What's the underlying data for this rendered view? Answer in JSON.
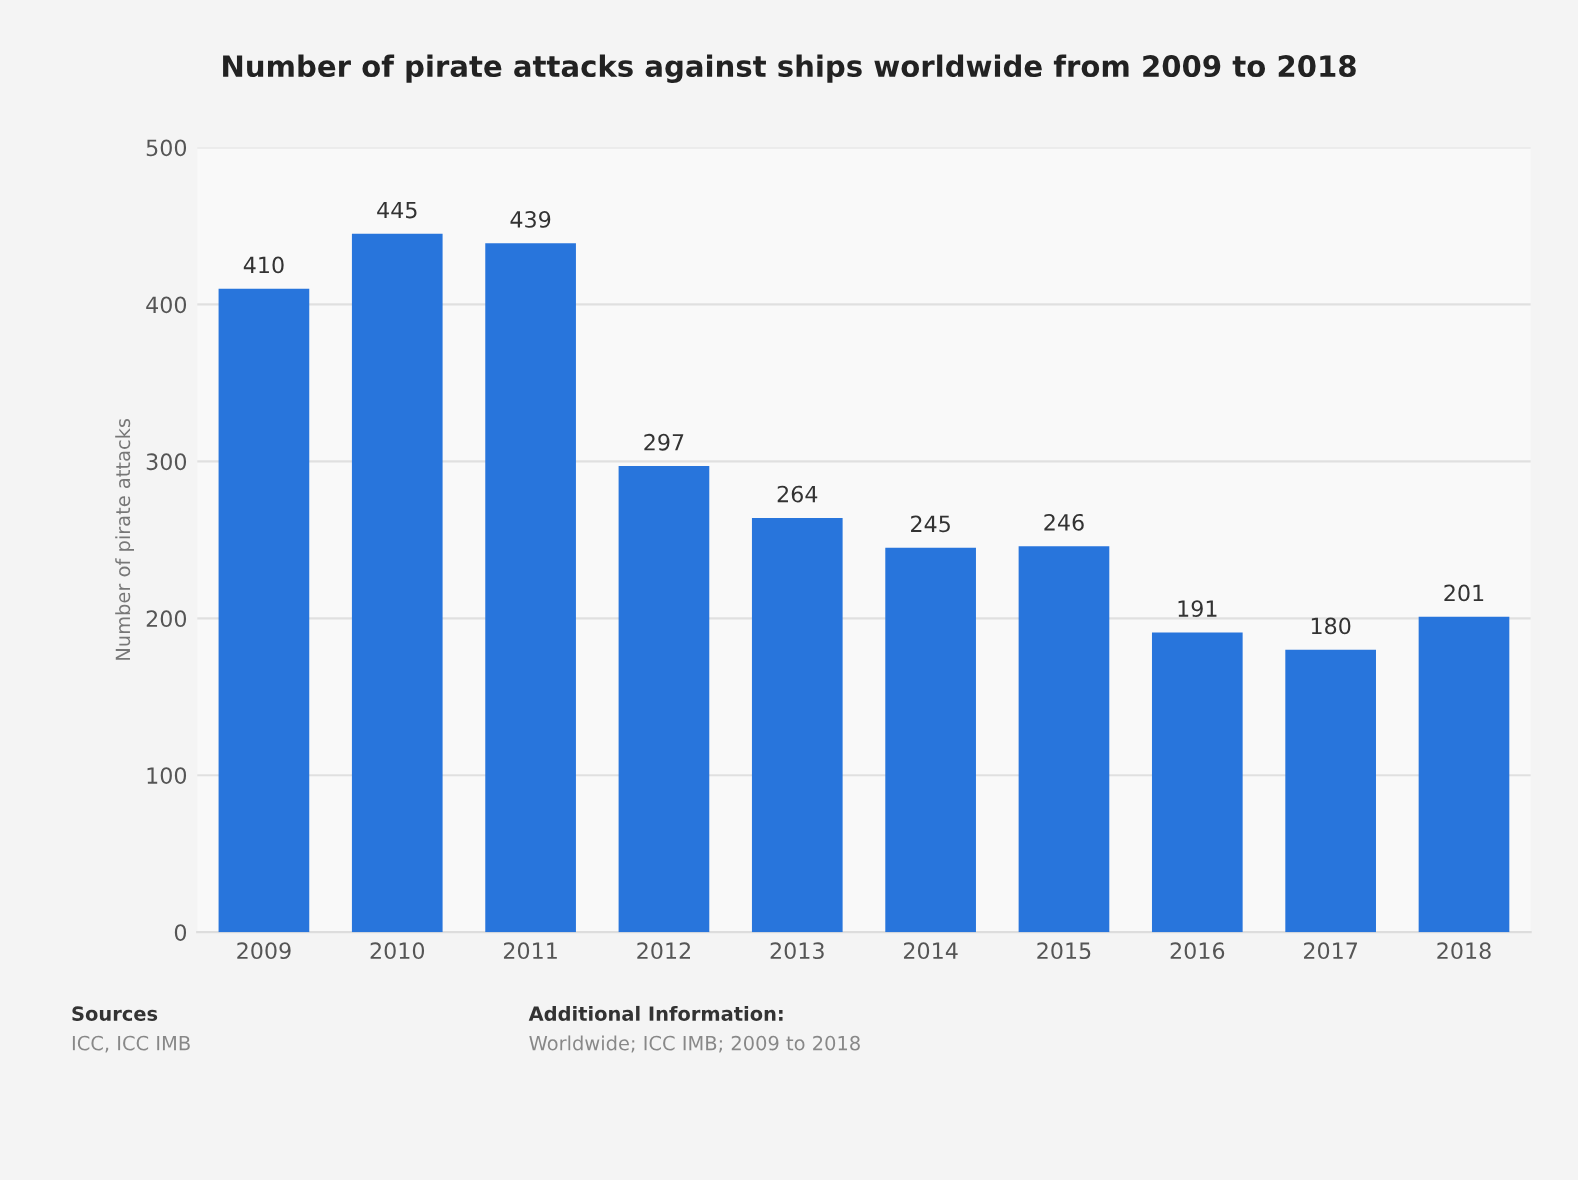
{
  "chart_data": {
    "type": "bar",
    "title": "Number of pirate attacks against ships worldwide from 2009 to 2018",
    "ylabel": "Number of pirate attacks",
    "categories": [
      "2009",
      "2010",
      "2011",
      "2012",
      "2013",
      "2014",
      "2015",
      "2016",
      "2017",
      "2018"
    ],
    "values": [
      410,
      445,
      439,
      297,
      264,
      245,
      246,
      191,
      180,
      201
    ],
    "color": "#2875dc",
    "ylim": [
      0,
      500
    ],
    "yticks": [
      0,
      100,
      200,
      300,
      400,
      500
    ],
    "grid": "y",
    "data_labels": true,
    "annotations": [
      "Sources",
      "ICC, ICC IMB",
      "Additional Information:",
      "Worldwide; ICC IMB; 2009 to 2018"
    ]
  }
}
